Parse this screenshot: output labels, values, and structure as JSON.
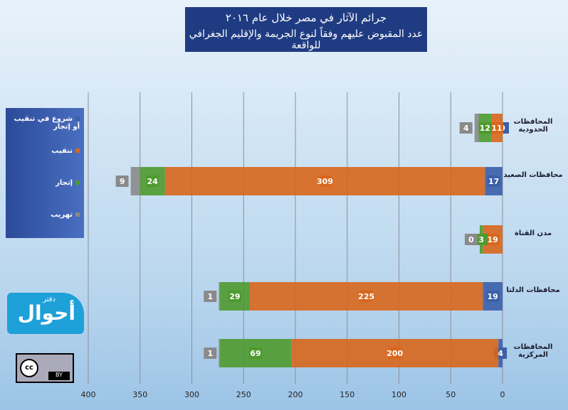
{
  "chart_data": {
    "type": "bar",
    "orientation": "horizontal",
    "stacked": true,
    "title": "جرائم الآثار في مصر خلال عام ٢٠١٦",
    "subtitle": "عدد المقبوض عليهم وفقاً لنوع الجريمة والإقليم الجغرافي للواقعة",
    "categories": [
      "المحافظات الحدودية",
      "محافظات الصعيد",
      "مدن القناة",
      "محافظات الدلتا",
      "المحافظات المركزية"
    ],
    "series": [
      {
        "name": "شروع في تنقيب أو إتجار",
        "color": "#3b5fa8",
        "values": [
          0,
          17,
          null,
          19,
          4
        ]
      },
      {
        "name": "تنقيب",
        "color": "#d8661c",
        "values": [
          11,
          309,
          19,
          225,
          200
        ]
      },
      {
        "name": "إتجار",
        "color": "#4e9a2e",
        "values": [
          12,
          24,
          3,
          29,
          69
        ]
      },
      {
        "name": "تهريب",
        "color": "#8a8a8a",
        "values": [
          4,
          9,
          0,
          1,
          1
        ]
      }
    ],
    "xlim": [
      400,
      0
    ],
    "xticks": [
      400,
      350,
      300,
      250,
      200,
      150,
      100,
      50,
      0
    ],
    "grid": true
  },
  "logo": {
    "main": "أحوال",
    "small": "دفتر",
    "license": "BY"
  }
}
